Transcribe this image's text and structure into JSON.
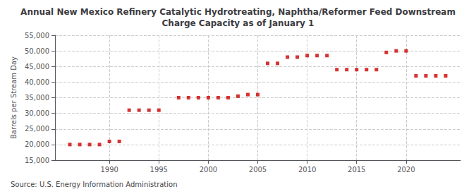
{
  "chart_data": {
    "type": "scatter",
    "title": "Annual New Mexico Refinery Catalytic Hydrotreating, Naphtha/Reformer Feed Downstream\nCharge Capacity as of January 1",
    "ylabel": "Barrels per Stream Day",
    "source": "Source: U.S. Energy Information Administration",
    "x": [
      1986,
      1987,
      1988,
      1989,
      1990,
      1991,
      1992,
      1993,
      1994,
      1995,
      1997,
      1998,
      1999,
      2000,
      2001,
      2002,
      2003,
      2004,
      2005,
      2006,
      2007,
      2008,
      2009,
      2010,
      2011,
      2012,
      2013,
      2014,
      2015,
      2016,
      2017,
      2018,
      2019,
      2020,
      2021,
      2022,
      2023,
      2024
    ],
    "values": [
      20000,
      20000,
      20000,
      20000,
      21000,
      21000,
      31000,
      31000,
      31000,
      31000,
      35000,
      35000,
      35000,
      35000,
      35000,
      35000,
      35500,
      36000,
      36000,
      46000,
      46000,
      48000,
      48000,
      48500,
      48500,
      48500,
      44000,
      44000,
      44000,
      44000,
      44000,
      49500,
      50000,
      50000,
      42000,
      42000,
      42000,
      42000
    ],
    "color": "#cc0000",
    "marker": "square",
    "xlim": [
      1984.5,
      2025.5
    ],
    "xticks": [
      1990,
      1995,
      2000,
      2005,
      2010,
      2015,
      2020
    ],
    "ylim": [
      15000,
      55000
    ],
    "yticks": [
      {
        "value": 15000,
        "label": "15,000"
      },
      {
        "value": 20000,
        "label": "20,000"
      },
      {
        "value": 25000,
        "label": "25,000"
      },
      {
        "value": 30000,
        "label": "30,000"
      },
      {
        "value": 35000,
        "label": "35,000"
      },
      {
        "value": 40000,
        "label": "40,000"
      },
      {
        "value": 45000,
        "label": "45,000"
      },
      {
        "value": 50000,
        "label": "50,000"
      },
      {
        "value": 55000,
        "label": "55,000"
      }
    ],
    "grid": true
  }
}
